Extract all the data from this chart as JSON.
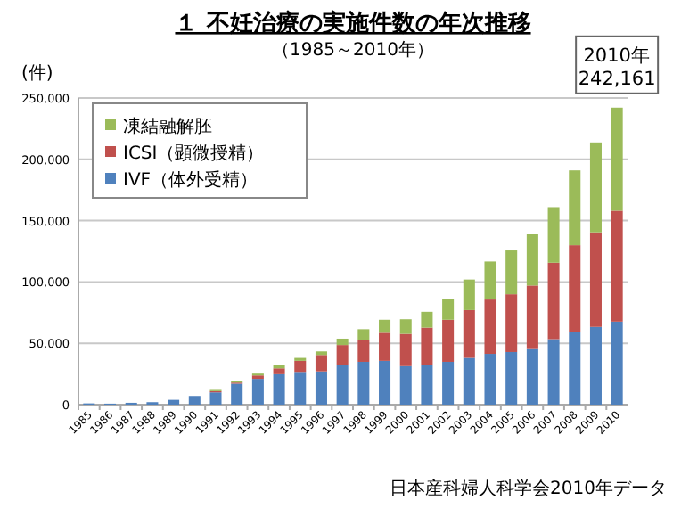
{
  "chart_data": {
    "type": "bar",
    "stacked": true,
    "title": "１ 不妊治療の実施件数の年次推移",
    "subtitle": "（1985～2010年）",
    "ylabel": "(件)",
    "categories": [
      "1985",
      "1986",
      "1987",
      "1988",
      "1989",
      "1990",
      "1991",
      "1992",
      "1993",
      "1994",
      "1995",
      "1996",
      "1997",
      "1998",
      "1999",
      "2000",
      "2001",
      "2002",
      "2003",
      "2004",
      "2005",
      "2006",
      "2007",
      "2008",
      "2009",
      "2010"
    ],
    "series": [
      {
        "name": "IVF（体外受精）",
        "color": "#4f81bd",
        "values": [
          1000,
          800,
          1500,
          2000,
          3900,
          7100,
          10000,
          17100,
          21000,
          24800,
          26700,
          27100,
          32000,
          34900,
          35700,
          31400,
          32400,
          34900,
          38100,
          41400,
          42900,
          45300,
          53400,
          59100,
          63400,
          67700
        ]
      },
      {
        "name": "ICSI（顕微授精）",
        "color": "#c0504d",
        "values": [
          0,
          0,
          0,
          0,
          0,
          0,
          1000,
          900,
          2800,
          4800,
          9000,
          13400,
          16600,
          18000,
          22900,
          26300,
          30400,
          34300,
          39000,
          44300,
          47100,
          51800,
          62300,
          70900,
          77100,
          90400
        ]
      },
      {
        "name": "凍結融解胚",
        "color": "#9bbb59",
        "values": [
          0,
          0,
          0,
          0,
          0,
          0,
          1000,
          1300,
          1500,
          2400,
          2400,
          2900,
          5200,
          8600,
          10600,
          11900,
          12900,
          16600,
          24900,
          31000,
          35700,
          42400,
          45300,
          61000,
          73300,
          84061
        ]
      }
    ],
    "ylim": [
      0,
      250000
    ],
    "yticks": [
      {
        "value": 0,
        "label": "0"
      },
      {
        "value": 50000,
        "label": "50,000"
      },
      {
        "value": 100000,
        "label": "100,000"
      },
      {
        "value": 150000,
        "label": "150,000"
      },
      {
        "value": 200000,
        "label": "200,000"
      },
      {
        "value": 250000,
        "label": "250,000"
      }
    ],
    "grid": "y",
    "legend": "top left",
    "annotations": [
      {
        "text": "2010年\n242,161",
        "x": "2010",
        "y": 242161
      },
      "日本産科婦人科学会2010年データ"
    ]
  }
}
